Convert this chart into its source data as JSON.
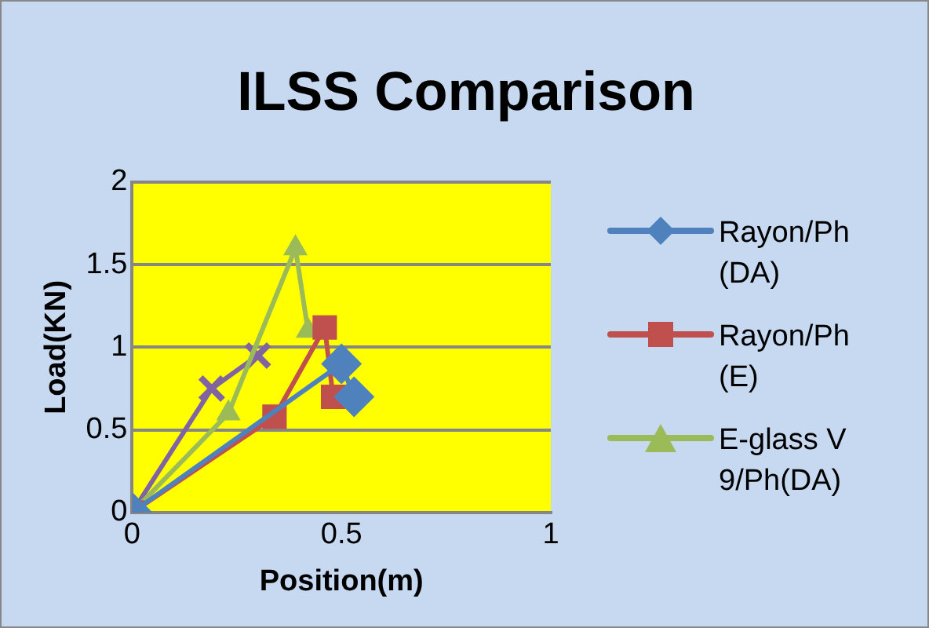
{
  "chart_data": {
    "type": "line",
    "title": "ILSS Comparison",
    "xlabel": "Position(m)",
    "ylabel": "Load(KN)",
    "xlim": [
      0,
      1
    ],
    "xticks": [
      0,
      0.5,
      1
    ],
    "ylim": [
      0,
      2
    ],
    "yticks": [
      0,
      0.5,
      1,
      1.5,
      2
    ],
    "grid": "y",
    "legend": "right",
    "series": [
      {
        "name": "Rayon/Ph(DA)",
        "color": "#4f81bd",
        "marker": "diamond",
        "x": [
          0,
          0.5,
          0.53
        ],
        "values": [
          0,
          0.9,
          0.7
        ]
      },
      {
        "name": "Rayon/Ph(E)",
        "color": "#c0504d",
        "marker": "square",
        "x": [
          0,
          0.34,
          0.46,
          0.48
        ],
        "values": [
          0,
          0.58,
          1.12,
          0.7
        ]
      },
      {
        "name": "E-glass V9/Ph(DA)",
        "color": "#9bbb59",
        "marker": "triangle",
        "x": [
          0,
          0.23,
          0.39,
          0.42
        ],
        "values": [
          0,
          0.6,
          1.6,
          1.1
        ]
      },
      {
        "color": "#8064a2",
        "marker": "cross",
        "x": [
          0,
          0.19,
          0.3
        ],
        "values": [
          0,
          0.75,
          0.95
        ]
      }
    ]
  }
}
